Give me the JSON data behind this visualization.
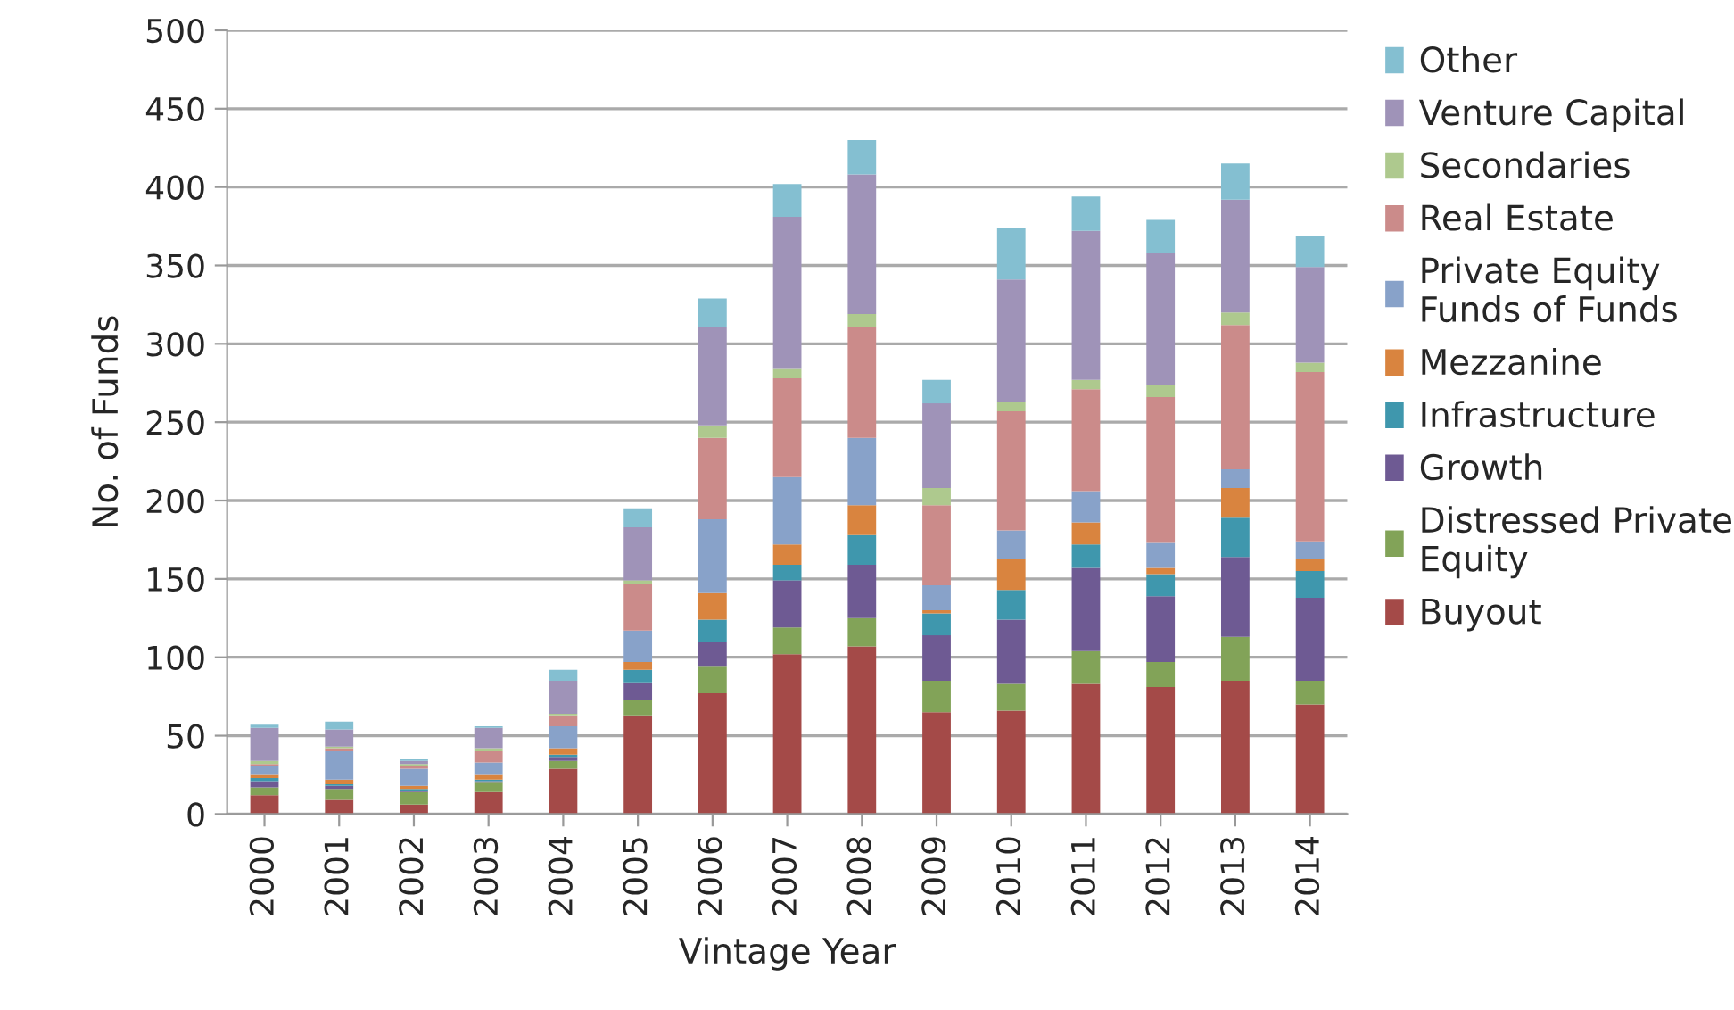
{
  "chart_data": {
    "type": "bar",
    "stacked": true,
    "xlabel": "Vintage Year",
    "ylabel": "No. of Funds",
    "categories": [
      "2000",
      "2001",
      "2002",
      "2003",
      "2004",
      "2005",
      "2006",
      "2007",
      "2008",
      "2009",
      "2010",
      "2011",
      "2012",
      "2013",
      "2014"
    ],
    "series": [
      {
        "name": "Buyout",
        "color": "#a44a48",
        "values": [
          12,
          9,
          6,
          14,
          29,
          63,
          77,
          102,
          107,
          65,
          66,
          83,
          81,
          85,
          70
        ]
      },
      {
        "name": "Distressed Private\nEquity",
        "color": "#82a358",
        "values": [
          5,
          7,
          8,
          6,
          5,
          10,
          17,
          17,
          18,
          20,
          17,
          21,
          16,
          28,
          15
        ]
      },
      {
        "name": "Growth",
        "color": "#6e5a93",
        "values": [
          4,
          2,
          1,
          1,
          2,
          11,
          16,
          30,
          34,
          29,
          41,
          53,
          42,
          51,
          53
        ]
      },
      {
        "name": "Infrastructure",
        "color": "#3f97ad",
        "values": [
          2,
          1,
          1,
          1,
          2,
          8,
          14,
          10,
          19,
          14,
          19,
          15,
          14,
          25,
          17
        ]
      },
      {
        "name": "Mezzanine",
        "color": "#d9843f",
        "values": [
          2,
          3,
          2,
          3,
          4,
          5,
          17,
          13,
          19,
          2,
          20,
          14,
          4,
          19,
          8
        ]
      },
      {
        "name": "Private Equity\nFunds of Funds",
        "color": "#88a2c9",
        "values": [
          6,
          18,
          11,
          8,
          14,
          20,
          47,
          43,
          43,
          16,
          18,
          20,
          16,
          12,
          11
        ]
      },
      {
        "name": "Real Estate",
        "color": "#cb8b8a",
        "values": [
          1,
          2,
          2,
          7,
          7,
          30,
          52,
          63,
          71,
          51,
          76,
          65,
          93,
          92,
          108
        ]
      },
      {
        "name": "Secondaries",
        "color": "#aec98e",
        "values": [
          2,
          1,
          1,
          2,
          1,
          2,
          8,
          6,
          8,
          11,
          6,
          6,
          8,
          8,
          6
        ]
      },
      {
        "name": "Venture Capital",
        "color": "#9f93b8",
        "values": [
          21,
          11,
          2,
          13,
          21,
          34,
          63,
          97,
          89,
          54,
          78,
          95,
          84,
          72,
          61
        ]
      },
      {
        "name": "Other",
        "color": "#84bfd1",
        "values": [
          2,
          5,
          1,
          1,
          7,
          12,
          18,
          21,
          22,
          15,
          33,
          22,
          21,
          23,
          20
        ]
      }
    ],
    "ylim": [
      0,
      500
    ],
    "yticks": [
      0,
      50,
      100,
      150,
      200,
      250,
      300,
      350,
      400,
      450,
      500
    ],
    "grid": "y",
    "legend": "right"
  }
}
